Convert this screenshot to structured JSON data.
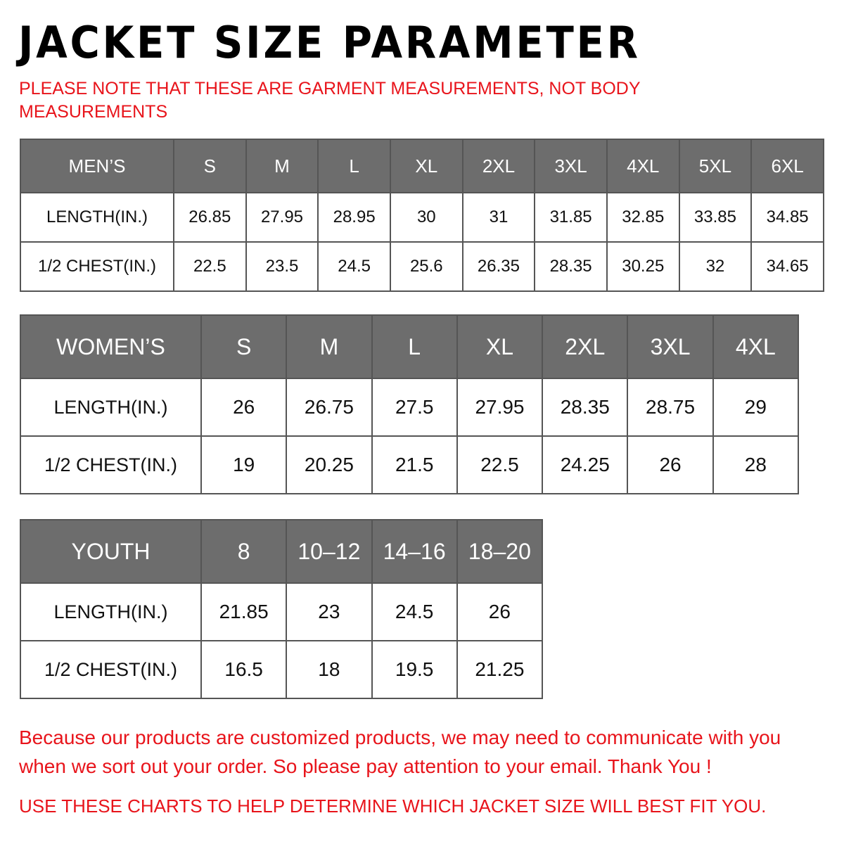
{
  "title": "JACKET SIZE PARAMETER",
  "note": "PLEASE NOTE THAT THESE ARE GARMENT MEASUREMENTS, NOT BODY MEASUREMENTS",
  "colors": {
    "header_bg": "#6d6d6d",
    "accent_red": "#e8141b"
  },
  "tables": {
    "men": {
      "header": [
        "MEN’S",
        "S",
        "M",
        "L",
        "XL",
        "2XL",
        "3XL",
        "4XL",
        "5XL",
        "6XL"
      ],
      "rows": [
        [
          "LENGTH(IN.)",
          "26.85",
          "27.95",
          "28.95",
          "30",
          "31",
          "31.85",
          "32.85",
          "33.85",
          "34.85"
        ],
        [
          "1/2 CHEST(IN.)",
          "22.5",
          "23.5",
          "24.5",
          "25.6",
          "26.35",
          "28.35",
          "30.25",
          "32",
          "34.65"
        ]
      ]
    },
    "women": {
      "header": [
        "WOMEN’S",
        "S",
        "M",
        "L",
        "XL",
        "2XL",
        "3XL",
        "4XL"
      ],
      "rows": [
        [
          "LENGTH(IN.)",
          "26",
          "26.75",
          "27.5",
          "27.95",
          "28.35",
          "28.75",
          "29"
        ],
        [
          "1/2 CHEST(IN.)",
          "19",
          "20.25",
          "21.5",
          "22.5",
          "24.25",
          "26",
          "28"
        ]
      ]
    },
    "youth": {
      "header": [
        "YOUTH",
        "8",
        "10–12",
        "14–16",
        "18–20"
      ],
      "rows": [
        [
          "LENGTH(IN.)",
          "21.85",
          "23",
          "24.5",
          "26"
        ],
        [
          "1/2 CHEST(IN.)",
          "16.5",
          "18",
          "19.5",
          "21.25"
        ]
      ]
    }
  },
  "footer": "Because our products are customized products, we may need to communicate with you when we sort out your order. So please pay attention to your email. Thank You !",
  "footer2": "USE THESE CHARTS TO HELP DETERMINE WHICH JACKET SIZE WILL BEST FIT YOU."
}
